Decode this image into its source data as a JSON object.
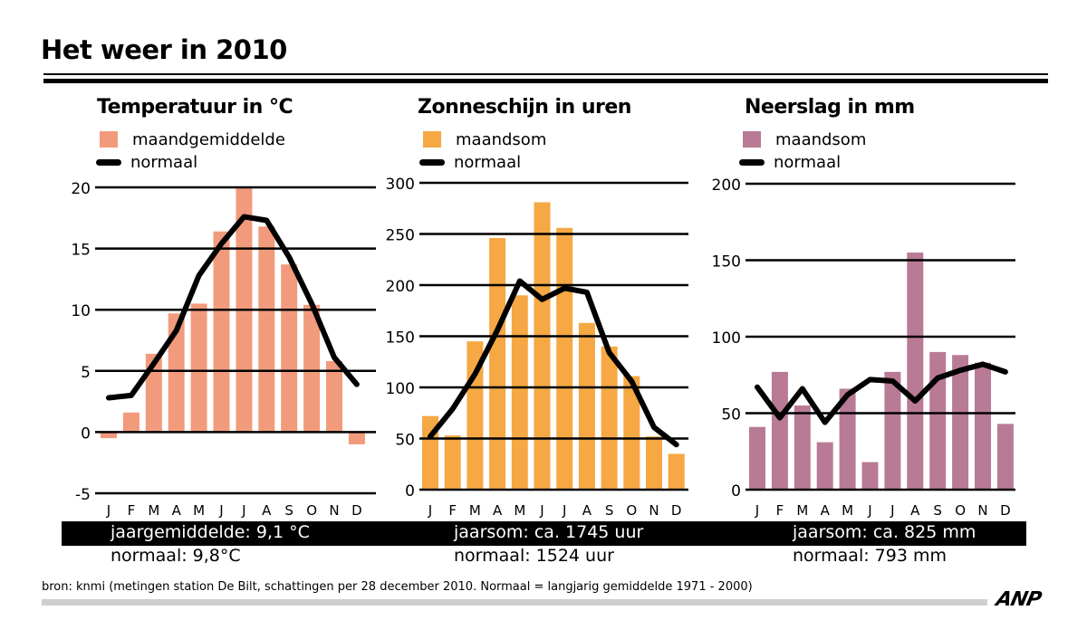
{
  "page": {
    "title": "Het weer in 2010",
    "source": "bron: knmi (metingen station De Bilt, schattingen per 28 december 2010. Normaal = langjarig gemiddelde 1971 - 2000)",
    "logo": "ANP"
  },
  "months": [
    "J",
    "F",
    "M",
    "A",
    "M",
    "J",
    "J",
    "A",
    "S",
    "O",
    "N",
    "D"
  ],
  "chart_data": [
    {
      "type": "bar",
      "title": "Temperatuur in °C",
      "legend": {
        "bar_label": "maandgemiddelde",
        "line_label": "normaal"
      },
      "bar_color": "#f29b7c",
      "line_color": "#000000",
      "categories": [
        "J",
        "F",
        "M",
        "A",
        "M",
        "J",
        "J",
        "A",
        "S",
        "O",
        "N",
        "D"
      ],
      "series": [
        {
          "name": "maandgemiddelde",
          "kind": "bar",
          "values": [
            -0.5,
            1.6,
            6.4,
            9.7,
            10.5,
            16.4,
            20.0,
            16.8,
            13.7,
            10.4,
            5.8,
            -1.0
          ]
        },
        {
          "name": "normaal",
          "kind": "line",
          "values": [
            2.8,
            3.0,
            5.6,
            8.3,
            12.8,
            15.4,
            17.6,
            17.3,
            14.3,
            10.5,
            6.1,
            3.9
          ]
        }
      ],
      "ylim": [
        -5,
        20
      ],
      "yticks": [
        20,
        15,
        10,
        5,
        0,
        -5
      ],
      "ytick_labels": [
        "20",
        "15",
        "10",
        "5",
        "0",
        "-5"
      ],
      "grid": true,
      "legend_position": "top-left",
      "summary": {
        "actual": "jaargemiddelde:   9,1 °C",
        "normal": "normaal: 9,8°C"
      }
    },
    {
      "type": "bar",
      "title": "Zonneschijn in uren",
      "legend": {
        "bar_label": "maandsom",
        "line_label": "normaal"
      },
      "bar_color": "#f5a843",
      "line_color": "#000000",
      "categories": [
        "J",
        "F",
        "M",
        "A",
        "M",
        "J",
        "J",
        "A",
        "S",
        "O",
        "N",
        "D"
      ],
      "series": [
        {
          "name": "maandsom",
          "kind": "bar",
          "values": [
            72,
            53,
            145,
            246,
            190,
            281,
            256,
            163,
            140,
            111,
            52,
            35
          ]
        },
        {
          "name": "normaal",
          "kind": "line",
          "values": [
            52,
            79,
            113,
            156,
            204,
            186,
            197,
            193,
            134,
            106,
            61,
            44
          ]
        }
      ],
      "ylim": [
        0,
        300
      ],
      "yticks": [
        300,
        250,
        200,
        150,
        100,
        50,
        0
      ],
      "ytick_labels": [
        "300",
        "250",
        "200",
        "150",
        "100",
        "50",
        "0"
      ],
      "grid": true,
      "legend_position": "top-left",
      "summary": {
        "actual": "jaarsom: ca. 1745 uur",
        "normal": "normaal: 1524 uur"
      }
    },
    {
      "type": "bar",
      "title": "Neerslag in mm",
      "legend": {
        "bar_label": "maandsom",
        "line_label": "normaal"
      },
      "bar_color": "#b97a96",
      "line_color": "#000000",
      "categories": [
        "J",
        "F",
        "M",
        "A",
        "M",
        "J",
        "J",
        "A",
        "S",
        "O",
        "N",
        "D"
      ],
      "series": [
        {
          "name": "maandsom",
          "kind": "bar",
          "values": [
            41,
            77,
            55,
            31,
            66,
            18,
            77,
            155,
            90,
            88,
            83,
            43
          ]
        },
        {
          "name": "normaal",
          "kind": "line",
          "values": [
            67,
            47,
            66,
            44,
            62,
            72,
            71,
            58,
            73,
            78,
            82,
            77
          ]
        }
      ],
      "ylim": [
        0,
        200
      ],
      "yticks": [
        200,
        150,
        100,
        50,
        0
      ],
      "ytick_labels": [
        "200",
        "150",
        "100",
        "50",
        "0"
      ],
      "grid": true,
      "legend_position": "top-left",
      "summary": {
        "actual": "jaarsom: ca. 825 mm",
        "normal": "normaal: 793 mm"
      }
    }
  ]
}
